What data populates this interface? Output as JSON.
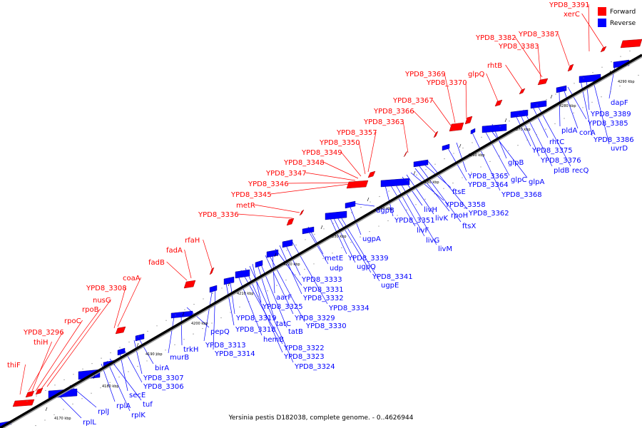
{
  "caption": "Yersinia pestis D182038, complete genome. - 0..4626944",
  "legend": {
    "forward_label": "Forward",
    "reverse_label": "Reverse",
    "forward_color": "#ff0000",
    "reverse_color": "#0000ff"
  },
  "ticks": [
    "4170 kbp",
    "4180 kbp",
    "4190 kbp",
    "4200 kbp",
    "4210 kbp",
    "4220 kbp",
    "4230 kbp",
    "4240 kbp",
    "4250 kbp",
    "4260 kbp",
    "4270 kbp",
    "4280 kbp",
    "4290 kbp"
  ],
  "forward_genes": [
    "thiF",
    "YPD8_3296",
    "thiH",
    "rpoC",
    "rpoB",
    "nusG",
    "YPD8_3308",
    "coaA",
    "fadB",
    "fadA",
    "rfaH",
    "YPD8_3336",
    "metR",
    "YPD8_3345",
    "YPD8_3346",
    "YPD8_3347",
    "YPD8_3348",
    "YPD8_3349",
    "YPD8_3350",
    "YPD8_3357",
    "YPD8_3363",
    "YPD8_3366",
    "YPD8_3367",
    "YPD8_3369",
    "YPD8_3370",
    "glpQ",
    "rhtB",
    "YPD8_3383",
    "YPD8_3382",
    "YPD8_3387",
    "YPD8_3391",
    "xerC"
  ],
  "reverse_genes": [
    "rplL",
    "rplJ",
    "rplA",
    "rplK",
    "tuf",
    "secE",
    "YPD8_3306",
    "YPD8_3307",
    "birA",
    "murB",
    "trkH",
    "pepQ",
    "YPD8_3313",
    "YPD8_3314",
    "YPD8_3318",
    "YPD8_3319",
    "hemB",
    "YPD8_3322",
    "YPD8_3323",
    "YPD8_3324",
    "YPD8_3325",
    "tatC",
    "tatB",
    "YPD8_3329",
    "YPD8_3330",
    "aarF",
    "YPD8_3331",
    "YPD8_3332",
    "YPD8_3333",
    "YPD8_3334",
    "udp",
    "metE",
    "YPD8_3339",
    "ugpQ",
    "YPD8_3341",
    "ugpE",
    "ugpA",
    "ugpB",
    "YPD8_3351",
    "livF",
    "livG",
    "livM",
    "livH",
    "livK",
    "YPD8_3358",
    "rpoH",
    "ftsX",
    "ftsE",
    "YPD8_3362",
    "YPD8_3364",
    "YPD8_3365",
    "YPD8_3368",
    "glpC",
    "glpA",
    "glpB",
    "YPD8_3375",
    "YPD8_3376",
    "pldB",
    "rhtC",
    "recQ",
    "pldA",
    "corA",
    "YPD8_3385",
    "YPD8_3386",
    "YPD8_3389",
    "uvrD",
    "dapF"
  ]
}
